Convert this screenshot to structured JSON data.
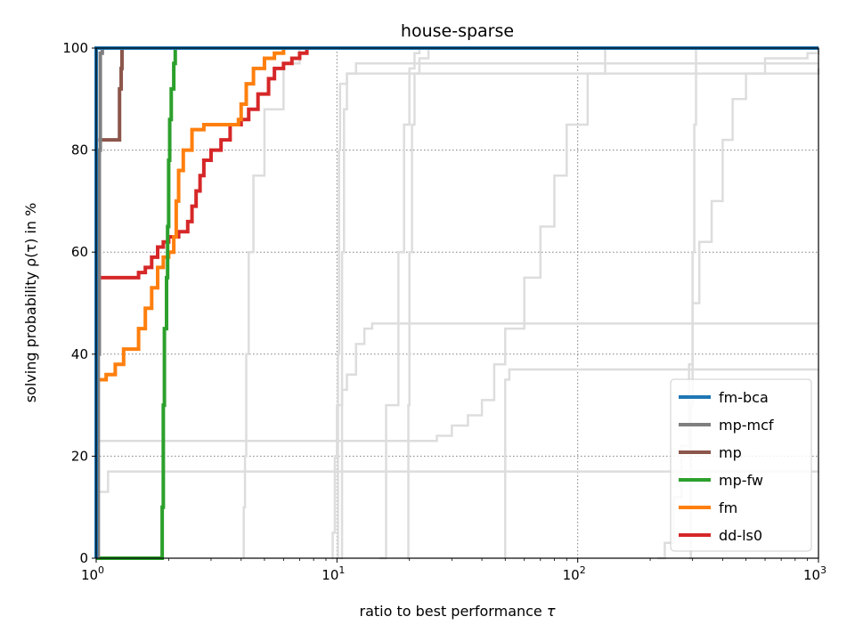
{
  "chart_data": {
    "type": "line",
    "title": "house-sparse",
    "xlabel_text": "ratio to best performance ",
    "xlabel_symbol": "τ",
    "ylabel_text": "solving probability ρ(τ) in %",
    "xscale": "log",
    "xlim": [
      1,
      1000
    ],
    "ylim": [
      0,
      100
    ],
    "grid": true,
    "legend_position": "lower-right",
    "x_ticks": [
      {
        "value": 1,
        "base": "10",
        "exp": "0"
      },
      {
        "value": 10,
        "base": "10",
        "exp": "1"
      },
      {
        "value": 100,
        "base": "10",
        "exp": "2"
      },
      {
        "value": 1000,
        "base": "10",
        "exp": "3"
      }
    ],
    "y_ticks": [
      "0",
      "20",
      "40",
      "60",
      "80",
      "100"
    ],
    "background_series": [
      {
        "color": "#dddddd",
        "points": [
          [
            1.0,
            0
          ],
          [
            1.0,
            13
          ],
          [
            1.12,
            13
          ],
          [
            1.12,
            17
          ],
          [
            1.3,
            17
          ],
          [
            1000,
            17
          ]
        ]
      },
      {
        "color": "#dddddd",
        "points": [
          [
            1.0,
            0
          ],
          [
            1.0,
            23
          ],
          [
            26,
            23
          ],
          [
            26,
            24
          ],
          [
            30,
            26
          ],
          [
            35,
            28
          ],
          [
            40,
            31
          ],
          [
            45,
            38
          ],
          [
            50,
            45
          ],
          [
            60,
            55
          ],
          [
            70,
            65
          ],
          [
            80,
            75
          ],
          [
            90,
            85
          ],
          [
            110,
            95
          ],
          [
            130,
            100
          ],
          [
            1000,
            100
          ]
        ]
      },
      {
        "color": "#dddddd",
        "points": [
          [
            4.1,
            0
          ],
          [
            4.1,
            10
          ],
          [
            4.15,
            20
          ],
          [
            4.2,
            40
          ],
          [
            4.3,
            60
          ],
          [
            4.5,
            75
          ],
          [
            5,
            88
          ],
          [
            6,
            97
          ],
          [
            7,
            100
          ],
          [
            1000,
            100
          ]
        ]
      },
      {
        "color": "#dddddd",
        "points": [
          [
            9.5,
            0
          ],
          [
            9.6,
            5
          ],
          [
            9.8,
            20
          ],
          [
            10,
            30
          ],
          [
            10.5,
            33
          ],
          [
            11,
            36
          ],
          [
            12,
            42
          ],
          [
            13,
            45
          ],
          [
            14,
            46
          ],
          [
            1000,
            46
          ]
        ]
      },
      {
        "color": "#dddddd",
        "points": [
          [
            10.0,
            0
          ],
          [
            10.1,
            40
          ],
          [
            10.2,
            80
          ],
          [
            10.3,
            93
          ],
          [
            11,
            95
          ],
          [
            12,
            97
          ],
          [
            1000,
            97
          ]
        ]
      },
      {
        "color": "#dddddd",
        "points": [
          [
            10.3,
            0
          ],
          [
            10.5,
            60
          ],
          [
            10.7,
            88
          ],
          [
            11,
            95
          ],
          [
            1000,
            96
          ]
        ]
      },
      {
        "color": "#dddddd",
        "points": [
          [
            15,
            0
          ],
          [
            16,
            30
          ],
          [
            18,
            60
          ],
          [
            19,
            85
          ],
          [
            20,
            96
          ],
          [
            21,
            99
          ],
          [
            22,
            100
          ],
          [
            1000,
            100
          ]
        ]
      },
      {
        "color": "#dddddd",
        "points": [
          [
            19.5,
            0
          ],
          [
            19.8,
            30
          ],
          [
            20,
            60
          ],
          [
            20.5,
            85
          ],
          [
            21,
            95
          ],
          [
            22,
            98
          ],
          [
            24,
            100
          ],
          [
            1000,
            100
          ]
        ]
      },
      {
        "color": "#dddddd",
        "points": [
          [
            50,
            0
          ],
          [
            50,
            35
          ],
          [
            52,
            37
          ],
          [
            1000,
            37
          ]
        ]
      },
      {
        "color": "#dddddd",
        "points": [
          [
            215,
            0
          ],
          [
            230,
            3
          ],
          [
            250,
            12
          ],
          [
            270,
            22
          ],
          [
            290,
            38
          ],
          [
            300,
            50
          ],
          [
            320,
            62
          ],
          [
            360,
            70
          ],
          [
            400,
            82
          ],
          [
            440,
            90
          ],
          [
            500,
            95
          ],
          [
            600,
            98
          ],
          [
            900,
            99
          ],
          [
            1000,
            100
          ]
        ]
      },
      {
        "color": "#dddddd",
        "points": [
          [
            290,
            0
          ],
          [
            295,
            30
          ],
          [
            300,
            60
          ],
          [
            305,
            85
          ],
          [
            310,
            100
          ],
          [
            1000,
            100
          ]
        ]
      }
    ],
    "series": [
      {
        "name": "fm-bca",
        "color": "#1f77b4",
        "points": [
          [
            1.0,
            0
          ],
          [
            1.0,
            100
          ],
          [
            1000,
            100
          ]
        ]
      },
      {
        "name": "mp-mcf",
        "color": "#7f7f7f",
        "points": [
          [
            1.02,
            0
          ],
          [
            1.02,
            40
          ],
          [
            1.03,
            80
          ],
          [
            1.04,
            99
          ],
          [
            1.06,
            100
          ]
        ]
      },
      {
        "name": "mp",
        "color": "#8c564b",
        "points": [
          [
            1.02,
            82
          ],
          [
            1.25,
            82
          ],
          [
            1.25,
            92
          ],
          [
            1.27,
            96
          ],
          [
            1.28,
            100
          ]
        ]
      },
      {
        "name": "mp-fw",
        "color": "#2ca02c",
        "points": [
          [
            1.0,
            0
          ],
          [
            1.85,
            0
          ],
          [
            1.88,
            10
          ],
          [
            1.9,
            30
          ],
          [
            1.92,
            45
          ],
          [
            1.96,
            55
          ],
          [
            1.98,
            65
          ],
          [
            2.0,
            78
          ],
          [
            2.02,
            86
          ],
          [
            2.05,
            92
          ],
          [
            2.1,
            97
          ],
          [
            2.13,
            100
          ]
        ]
      },
      {
        "name": "fm",
        "color": "#ff7f0e",
        "points": [
          [
            1.0,
            35
          ],
          [
            1.1,
            36
          ],
          [
            1.2,
            38
          ],
          [
            1.3,
            41
          ],
          [
            1.4,
            41
          ],
          [
            1.5,
            45
          ],
          [
            1.6,
            49
          ],
          [
            1.7,
            53
          ],
          [
            1.8,
            57
          ],
          [
            1.9,
            59
          ],
          [
            2.0,
            60
          ],
          [
            2.1,
            63
          ],
          [
            2.15,
            70
          ],
          [
            2.2,
            76
          ],
          [
            2.3,
            80
          ],
          [
            2.5,
            84
          ],
          [
            2.8,
            85
          ],
          [
            3.5,
            85
          ],
          [
            3.9,
            86
          ],
          [
            4.0,
            89
          ],
          [
            4.2,
            93
          ],
          [
            4.5,
            96
          ],
          [
            5.0,
            98
          ],
          [
            5.5,
            99
          ],
          [
            6.0,
            100
          ]
        ]
      },
      {
        "name": "dd-ls0",
        "color": "#d62728",
        "points": [
          [
            1.0,
            55
          ],
          [
            1.4,
            55
          ],
          [
            1.5,
            56
          ],
          [
            1.6,
            57
          ],
          [
            1.7,
            59
          ],
          [
            1.8,
            61
          ],
          [
            1.9,
            62
          ],
          [
            2.0,
            63
          ],
          [
            2.1,
            63
          ],
          [
            2.2,
            64
          ],
          [
            2.4,
            66
          ],
          [
            2.5,
            69
          ],
          [
            2.6,
            72
          ],
          [
            2.7,
            75
          ],
          [
            2.8,
            78
          ],
          [
            3.0,
            80
          ],
          [
            3.3,
            82
          ],
          [
            3.6,
            85
          ],
          [
            4.0,
            86
          ],
          [
            4.3,
            88
          ],
          [
            4.7,
            91
          ],
          [
            5.2,
            94
          ],
          [
            5.5,
            96
          ],
          [
            6.0,
            97
          ],
          [
            6.5,
            98
          ],
          [
            7.0,
            99
          ],
          [
            7.5,
            100
          ]
        ]
      }
    ]
  }
}
